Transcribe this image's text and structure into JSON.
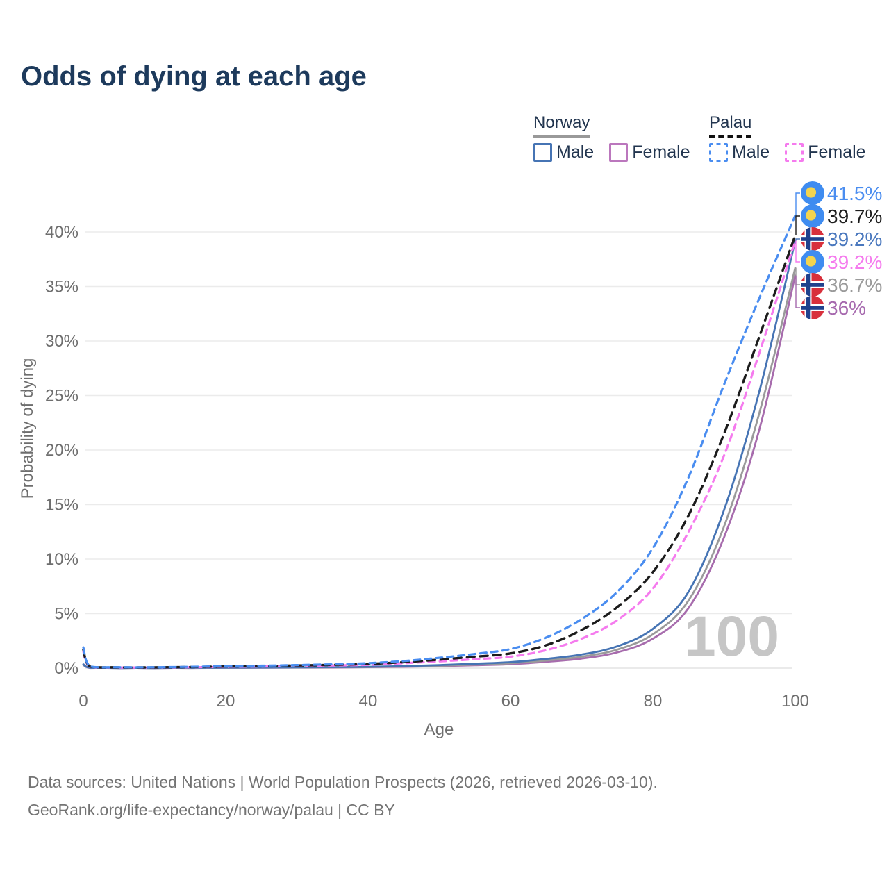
{
  "title": "Odds of dying at each age",
  "legend": {
    "groups": [
      {
        "key": "norway",
        "label": "Norway",
        "line_style": "solid",
        "underline_color": "#999999",
        "items": [
          {
            "key": "norway-male",
            "label": "Male",
            "color": "#4674b4"
          },
          {
            "key": "norway-female",
            "label": "Female",
            "color": "#bb77bd"
          }
        ]
      },
      {
        "key": "palau",
        "label": "Palau",
        "line_style": "dashed",
        "underline_color": "#111111",
        "items": [
          {
            "key": "palau-male",
            "label": "Male",
            "color": "#4a8df0"
          },
          {
            "key": "palau-female",
            "label": "Female",
            "color": "#f57bee"
          }
        ]
      }
    ]
  },
  "chart_data": {
    "type": "line",
    "title": "Odds of dying at each age",
    "xlabel": "Age",
    "ylabel": "Probability of dying",
    "x_ticks": [
      0,
      20,
      40,
      60,
      80,
      100
    ],
    "y_ticks": [
      0,
      5,
      10,
      15,
      20,
      25,
      30,
      35,
      40
    ],
    "y_tick_suffix": "%",
    "xlim": [
      0,
      100
    ],
    "ylim_pct": [
      0,
      43
    ],
    "grid": "horizontal",
    "watermark": "100",
    "ages": [
      0,
      1,
      5,
      10,
      15,
      20,
      25,
      30,
      35,
      40,
      45,
      50,
      55,
      60,
      65,
      70,
      75,
      80,
      85,
      90,
      95,
      100
    ],
    "series": [
      {
        "key": "norway-female",
        "name": "Norway Female",
        "color": "#a76cad",
        "dash": false,
        "values": [
          0.3,
          0.02,
          0.01,
          0.01,
          0.02,
          0.03,
          0.04,
          0.05,
          0.06,
          0.09,
          0.12,
          0.18,
          0.26,
          0.36,
          0.58,
          0.88,
          1.45,
          2.7,
          5.5,
          12.0,
          22.0,
          36.0
        ]
      },
      {
        "key": "norway-both",
        "name": "Norway Both sexes",
        "color": "#9a9a9a",
        "dash": false,
        "values": [
          0.32,
          0.03,
          0.01,
          0.01,
          0.02,
          0.04,
          0.05,
          0.06,
          0.08,
          0.1,
          0.15,
          0.22,
          0.32,
          0.45,
          0.7,
          1.05,
          1.7,
          3.1,
          6.2,
          13.0,
          23.5,
          36.7
        ]
      },
      {
        "key": "norway-male",
        "name": "Norway Male",
        "color": "#4674b4",
        "dash": false,
        "values": [
          0.35,
          0.03,
          0.01,
          0.01,
          0.03,
          0.05,
          0.06,
          0.07,
          0.09,
          0.12,
          0.18,
          0.28,
          0.4,
          0.55,
          0.85,
          1.25,
          2.0,
          3.6,
          7.0,
          14.5,
          25.5,
          39.2
        ]
      },
      {
        "key": "palau-female",
        "name": "Palau Female",
        "color": "#f57bee",
        "dash": true,
        "values": [
          1.5,
          0.11,
          0.06,
          0.06,
          0.08,
          0.12,
          0.15,
          0.19,
          0.24,
          0.3,
          0.45,
          0.62,
          0.82,
          1.05,
          1.65,
          2.7,
          4.4,
          7.3,
          12.5,
          19.5,
          29.0,
          39.2
        ]
      },
      {
        "key": "palau-both",
        "name": "Palau Both sexes",
        "color": "#1c1c1c",
        "dash": true,
        "values": [
          1.7,
          0.13,
          0.07,
          0.07,
          0.1,
          0.15,
          0.19,
          0.24,
          0.3,
          0.38,
          0.55,
          0.78,
          1.05,
          1.35,
          2.1,
          3.5,
          5.6,
          8.8,
          14.0,
          21.5,
          30.5,
          39.7
        ]
      },
      {
        "key": "palau-male",
        "name": "Palau Male",
        "color": "#4a8df0",
        "dash": true,
        "values": [
          1.9,
          0.15,
          0.08,
          0.08,
          0.12,
          0.18,
          0.22,
          0.28,
          0.35,
          0.45,
          0.65,
          0.95,
          1.3,
          1.75,
          2.8,
          4.5,
          7.0,
          11.0,
          17.5,
          26.0,
          34.0,
          41.5
        ]
      }
    ],
    "end_labels": [
      {
        "text": "41.5%",
        "series": "palau-male",
        "flag": "palau",
        "color": "#4a8df0",
        "value_pct": 41.5
      },
      {
        "text": "39.7%",
        "series": "palau-both",
        "flag": "palau",
        "color": "#1c1c1c",
        "value_pct": 39.7
      },
      {
        "text": "39.2%",
        "series": "norway-male",
        "flag": "norway",
        "color": "#4a78be",
        "value_pct": 39.2
      },
      {
        "text": "39.2%",
        "series": "palau-female",
        "flag": "palau",
        "color": "#f57bee",
        "value_pct": 39.2
      },
      {
        "text": "36.7%",
        "series": "norway-both",
        "flag": "norway",
        "color": "#9a9a9a",
        "value_pct": 36.7
      },
      {
        "text": "36%",
        "series": "norway-female",
        "flag": "norway",
        "color": "#a669ae",
        "value_pct": 36.0
      }
    ]
  },
  "footer": {
    "line1": "Data sources: United Nations | World Population Prospects (2026, retrieved 2026-03-10).",
    "line2": "GeoRank.org/life-expectancy/norway/palau | CC BY"
  }
}
